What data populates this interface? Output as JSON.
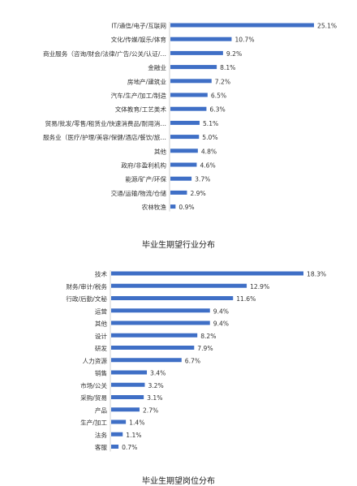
{
  "chart_data": [
    {
      "type": "bar",
      "orientation": "horizontal",
      "title": "毕业生期望行业分布",
      "bar_color": "#3F6FC6",
      "value_suffix": "%",
      "categories": [
        "IT/通信/电子/互联网",
        "文化/传媒/娱乐/体育",
        "商业服务（咨询/财会/法律/广告/公关/认证/…",
        "金融业",
        "房地产/建筑业",
        "汽车/生产/加工/制造",
        "文体教育/工艺美术",
        "贸易/批发/零售/租赁业/快速消费品/耐用消…",
        "服务业（医疗/护理/美容/保健/酒店/餐饮/旅…",
        "其他",
        "政府/非盈利机构",
        "能源/矿产/环保",
        "交通/运输/物流/仓储",
        "农林牧渔"
      ],
      "values": [
        25.1,
        10.7,
        9.2,
        8.1,
        7.2,
        6.5,
        6.3,
        5.1,
        5.0,
        4.8,
        4.6,
        3.7,
        2.9,
        0.9
      ],
      "xlim": [
        0,
        25.1
      ]
    },
    {
      "type": "bar",
      "orientation": "horizontal",
      "title": "毕业生期望岗位分布",
      "bar_color": "#3F6FC6",
      "value_suffix": "%",
      "categories": [
        "技术",
        "财务/审计/税务",
        "行政/后勤/文秘",
        "运营",
        "其他",
        "设计",
        "研发",
        "人力资源",
        "销售",
        "市场/公关",
        "采购/贸易",
        "产品",
        "生产/加工",
        "法务",
        "客服"
      ],
      "values": [
        18.3,
        12.9,
        11.6,
        9.4,
        9.4,
        8.2,
        7.9,
        6.7,
        3.4,
        3.2,
        3.1,
        2.7,
        1.4,
        1.1,
        0.7
      ],
      "xlim": [
        0,
        18.3
      ]
    }
  ]
}
